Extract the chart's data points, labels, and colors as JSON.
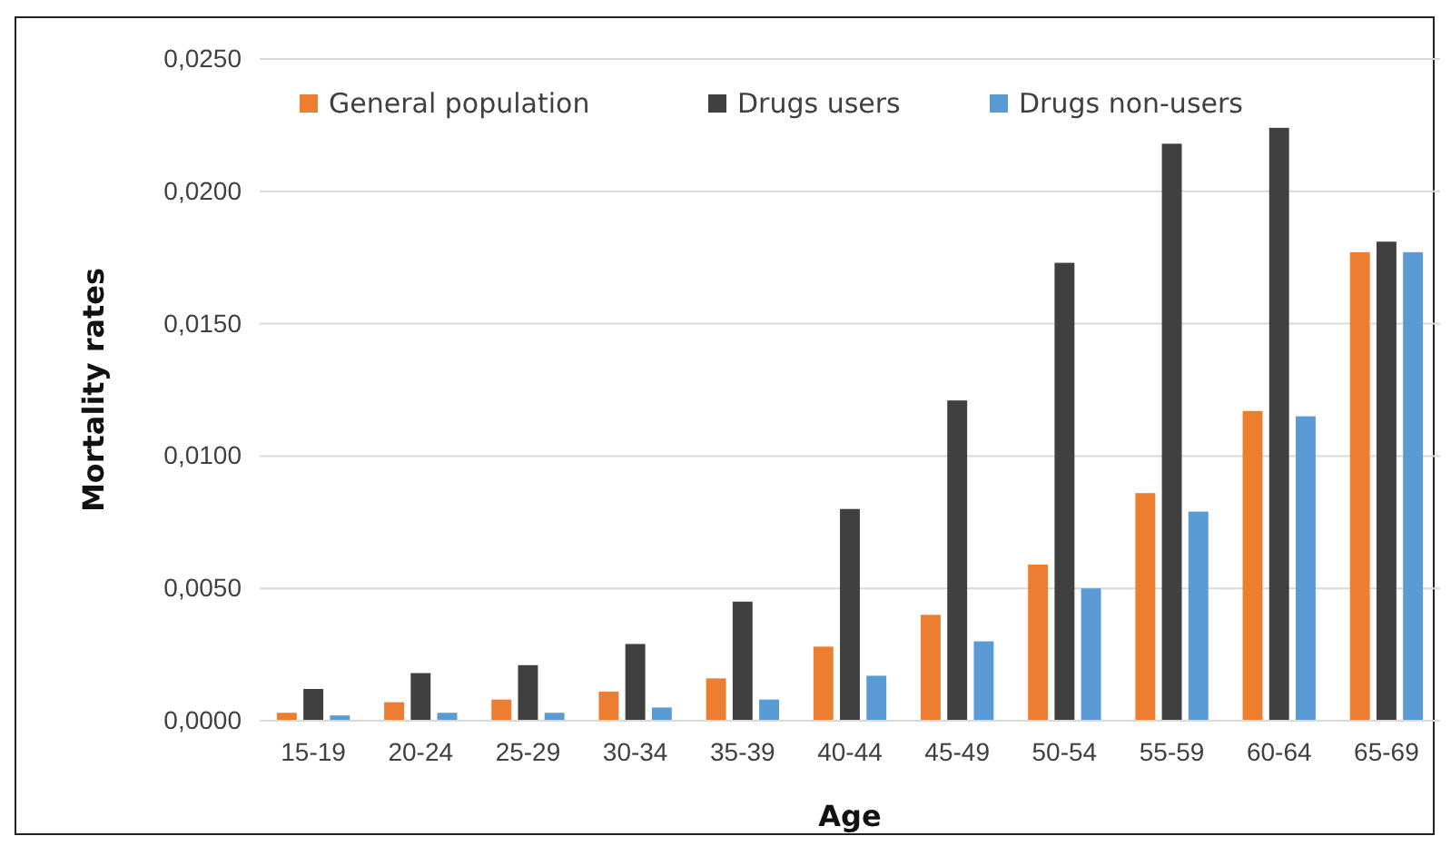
{
  "chart_data": {
    "type": "bar",
    "xlabel": "Age",
    "ylabel": "Mortality rates",
    "categories": [
      "15-19",
      "20-24",
      "25-29",
      "30-34",
      "35-39",
      "40-44",
      "45-49",
      "50-54",
      "55-59",
      "60-64",
      "65-69"
    ],
    "series": [
      {
        "name": "General population",
        "color": "#ed7d31",
        "values": [
          0.0003,
          0.0007,
          0.0008,
          0.0011,
          0.0016,
          0.0028,
          0.004,
          0.0059,
          0.0086,
          0.0117,
          0.0177
        ]
      },
      {
        "name": "Drugs users",
        "color": "#404040",
        "values": [
          0.0012,
          0.0018,
          0.0021,
          0.0029,
          0.0045,
          0.008,
          0.0121,
          0.0173,
          0.0218,
          0.0224,
          0.0181
        ]
      },
      {
        "name": "Drugs non-users",
        "color": "#5b9bd5",
        "values": [
          0.0002,
          0.0003,
          0.0003,
          0.0005,
          0.0008,
          0.0017,
          0.003,
          0.005,
          0.0079,
          0.0115,
          0.0177
        ]
      }
    ],
    "ylim": [
      0,
      0.025
    ],
    "yticks": [
      {
        "value": 0,
        "label": "0,0000"
      },
      {
        "value": 0.005,
        "label": "0,0050"
      },
      {
        "value": 0.01,
        "label": "0,0100"
      },
      {
        "value": 0.015,
        "label": "0,0150"
      },
      {
        "value": 0.02,
        "label": "0,0200"
      },
      {
        "value": 0.025,
        "label": "0,0250"
      }
    ],
    "grid": "y",
    "legend": "top"
  }
}
